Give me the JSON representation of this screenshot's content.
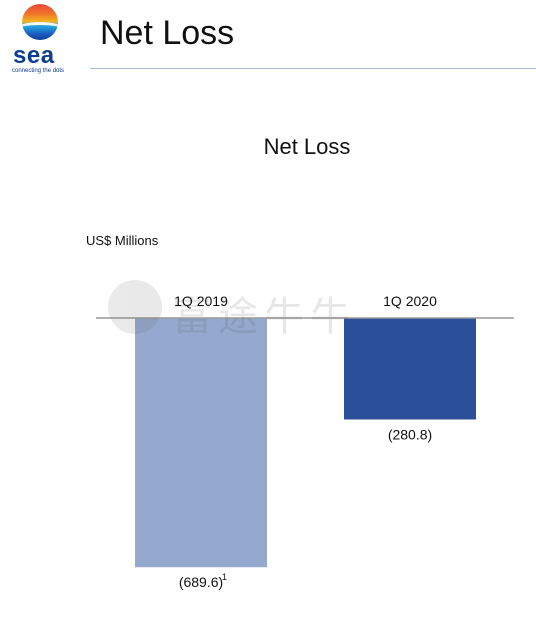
{
  "logo": {
    "word": "sea",
    "tagline": "connecting the dots",
    "brand_color": "#0d3c91"
  },
  "page_title": "Net Loss",
  "watermark": {
    "text": "富途牛牛"
  },
  "chart_data": {
    "type": "bar",
    "title": "Net Loss",
    "unit": "US$ Millions",
    "categories": [
      "1Q 2019",
      "1Q 2020"
    ],
    "values": [
      -689.6,
      -280.8
    ],
    "value_labels": [
      "(689.6)",
      "(280.8)"
    ],
    "footnote_marks": [
      "1",
      ""
    ],
    "colors": [
      "#95a9ce",
      "#2b4f99"
    ],
    "ylim": [
      -700,
      0
    ],
    "grid": false,
    "legend": "none"
  }
}
